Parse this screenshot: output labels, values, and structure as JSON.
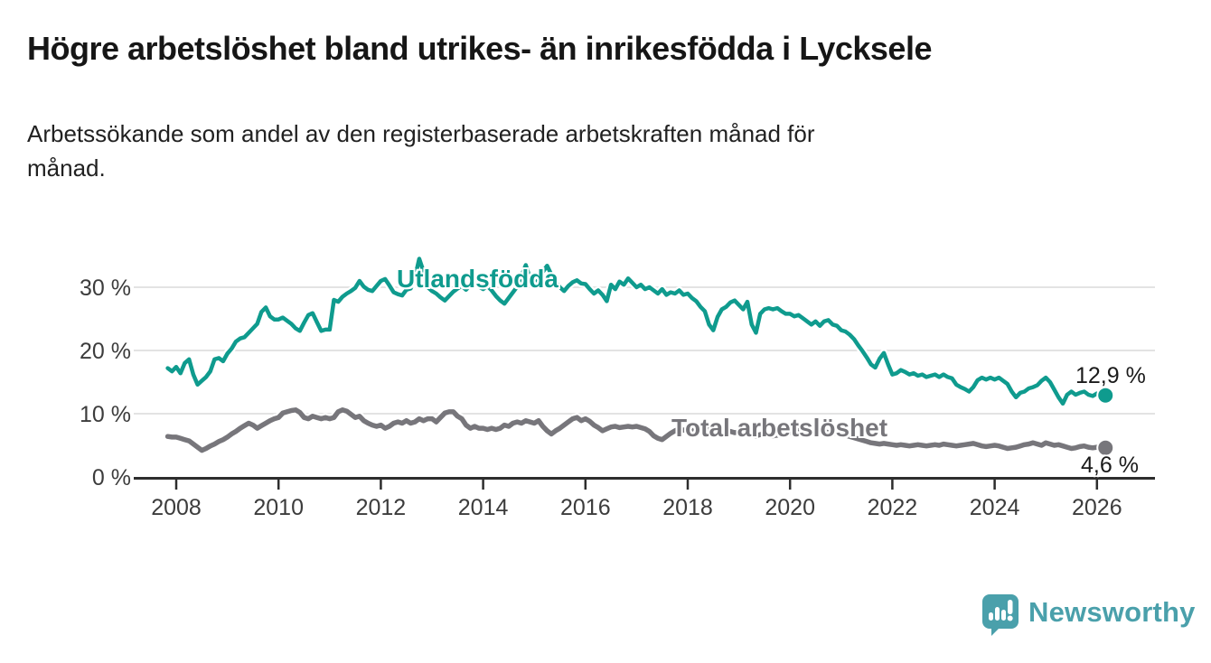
{
  "header": {
    "title": "Högre arbetslöshet bland utrikes- än inrikesfödda i Lycksele",
    "subtitle_line1": "Arbetssökande som andel av den registerbaserade arbetskraften månad för",
    "subtitle_line2": "månad."
  },
  "footer": {
    "brand": "Newsworthy",
    "brand_color": "#4aa0ab"
  },
  "colors": {
    "grid": "#e3e3e3",
    "axis": "#2d2d2d",
    "tick_text": "#3c3c3c",
    "data_label_text": "#1a1a1a",
    "background": "#ffffff"
  },
  "chart_data": {
    "type": "line",
    "unit": "percent",
    "title": "Högre arbetslöshet bland utrikes- än inrikesfödda i Lycksele",
    "subtitle": "Arbetssökande som andel av den registerbaserade arbetskraften månad för månad.",
    "x_monthly_start": "2007-11",
    "x_monthly_end": "2026-03",
    "ylim": [
      0,
      35
    ],
    "grid": "horizontal",
    "legend_position": "inline-labels",
    "y_ticks": [
      {
        "v": 0,
        "label": "0 %"
      },
      {
        "v": 10,
        "label": "10 %"
      },
      {
        "v": 20,
        "label": "20 %"
      },
      {
        "v": 30,
        "label": "30 %"
      }
    ],
    "x_ticks": [
      {
        "year": 2008,
        "label": "2008"
      },
      {
        "year": 2010,
        "label": "2010"
      },
      {
        "year": 2012,
        "label": "2012"
      },
      {
        "year": 2014,
        "label": "2014"
      },
      {
        "year": 2016,
        "label": "2016"
      },
      {
        "year": 2018,
        "label": "2018"
      },
      {
        "year": 2020,
        "label": "2020"
      },
      {
        "year": 2022,
        "label": "2022"
      },
      {
        "year": 2024,
        "label": "2024"
      },
      {
        "year": 2026,
        "label": "2026"
      }
    ],
    "series": [
      {
        "name": "Utlandsfödda",
        "color": "#0f9b8e",
        "end_label": "12,9 %",
        "end_value": 12.9,
        "values": [
          17.2,
          16.7,
          17.4,
          16.4,
          18.0,
          18.6,
          16.2,
          14.6,
          15.2,
          15.8,
          16.7,
          18.6,
          18.8,
          18.3,
          19.5,
          20.3,
          21.4,
          21.9,
          22.1,
          22.8,
          23.5,
          24.2,
          26.1,
          26.8,
          25.4,
          24.9,
          24.9,
          25.2,
          24.7,
          24.2,
          23.5,
          23.1,
          24.4,
          25.6,
          25.9,
          24.5,
          23.1,
          23.3,
          23.3,
          28.0,
          27.7,
          28.5,
          29.0,
          29.4,
          29.9,
          31.0,
          30.1,
          29.6,
          29.4,
          30.2,
          31.0,
          31.3,
          30.3,
          29.2,
          28.9,
          28.7,
          29.6,
          29.8,
          31.5,
          34.5,
          32.5,
          30.0,
          29.4,
          29.0,
          28.4,
          27.9,
          28.6,
          29.3,
          29.8,
          30.2,
          29.6,
          30.4,
          30.8,
          30.1,
          29.7,
          30.2,
          29.5,
          28.6,
          27.9,
          27.4,
          28.3,
          29.2,
          30.1,
          31.8,
          33.5,
          31.4,
          30.6,
          31.2,
          32.4,
          33.4,
          32.0,
          30.8,
          30.0,
          29.4,
          30.2,
          30.8,
          31.1,
          30.6,
          30.5,
          29.7,
          29.0,
          29.5,
          28.8,
          27.8,
          30.4,
          29.7,
          30.9,
          30.4,
          31.4,
          30.7,
          30.0,
          30.4,
          29.7,
          30.0,
          29.5,
          29.0,
          29.7,
          28.8,
          29.2,
          29.0,
          29.5,
          28.8,
          29.0,
          28.3,
          27.8,
          26.9,
          26.2,
          24.1,
          23.2,
          25.3,
          26.5,
          26.9,
          27.6,
          27.9,
          27.2,
          26.5,
          27.7,
          24.1,
          22.8,
          25.8,
          26.5,
          26.7,
          26.5,
          26.7,
          26.2,
          25.8,
          25.8,
          25.4,
          25.6,
          25.1,
          24.6,
          24.1,
          24.6,
          23.9,
          24.6,
          24.8,
          24.1,
          23.9,
          23.2,
          23.0,
          22.5,
          21.8,
          20.8,
          19.9,
          18.9,
          17.8,
          17.3,
          18.7,
          19.6,
          17.8,
          16.2,
          16.4,
          16.9,
          16.6,
          16.2,
          16.4,
          16.0,
          16.2,
          15.8,
          16.0,
          16.2,
          15.8,
          16.2,
          15.8,
          15.6,
          14.6,
          14.2,
          13.9,
          13.5,
          14.2,
          15.3,
          15.7,
          15.4,
          15.7,
          15.4,
          15.7,
          15.2,
          14.7,
          13.5,
          12.6,
          13.3,
          13.5,
          14.0,
          14.2,
          14.5,
          15.2,
          15.7,
          15.0,
          13.8,
          12.6,
          11.6,
          13.0,
          13.5,
          13.0,
          13.3,
          13.5,
          13.0,
          12.8,
          13.2,
          12.8,
          12.9
        ]
      },
      {
        "name": "Total arbetslöshet",
        "color": "#77767b",
        "end_label": "4,6 %",
        "end_value": 4.6,
        "values": [
          6.4,
          6.3,
          6.3,
          6.1,
          5.9,
          5.7,
          5.2,
          4.7,
          4.2,
          4.5,
          4.9,
          5.2,
          5.6,
          5.9,
          6.3,
          6.8,
          7.2,
          7.7,
          8.1,
          8.5,
          8.2,
          7.7,
          8.1,
          8.5,
          8.9,
          9.2,
          9.4,
          10.1,
          10.3,
          10.5,
          10.6,
          10.2,
          9.4,
          9.2,
          9.6,
          9.4,
          9.2,
          9.4,
          9.2,
          9.4,
          10.3,
          10.6,
          10.4,
          9.9,
          9.4,
          9.6,
          8.9,
          8.5,
          8.2,
          8.0,
          8.2,
          7.7,
          8.0,
          8.5,
          8.7,
          8.5,
          8.9,
          8.5,
          8.7,
          9.2,
          8.9,
          9.2,
          9.2,
          8.7,
          9.4,
          10.1,
          10.3,
          10.3,
          9.6,
          9.2,
          8.2,
          7.7,
          8.0,
          7.7,
          7.7,
          7.5,
          7.7,
          7.5,
          7.7,
          8.2,
          8.0,
          8.5,
          8.7,
          8.5,
          8.9,
          8.7,
          8.5,
          8.9,
          8.0,
          7.3,
          6.8,
          7.3,
          7.7,
          8.2,
          8.7,
          9.2,
          9.4,
          8.9,
          9.2,
          8.8,
          8.2,
          7.8,
          7.3,
          7.6,
          7.9,
          8.0,
          7.8,
          7.9,
          8.0,
          7.9,
          8.0,
          7.8,
          7.6,
          7.2,
          6.5,
          6.1,
          5.9,
          6.4,
          6.9,
          7.3,
          7.6,
          7.4,
          7.6,
          7.3,
          7.6,
          7.1,
          7.3,
          7.6,
          7.4,
          7.2,
          7.0,
          7.1,
          7.2,
          7.0,
          7.1,
          6.9,
          6.8,
          6.6,
          6.5,
          6.7,
          6.8,
          6.6,
          6.5,
          6.6,
          6.7,
          6.8,
          6.9,
          7.0,
          7.3,
          7.7,
          7.9,
          7.8,
          7.6,
          7.4,
          7.2,
          7.0,
          6.9,
          6.8,
          6.7,
          6.6,
          6.4,
          6.2,
          6.0,
          5.8,
          5.6,
          5.4,
          5.3,
          5.2,
          5.3,
          5.2,
          5.1,
          5.0,
          5.1,
          5.0,
          4.9,
          5.0,
          5.1,
          5.0,
          4.9,
          5.0,
          5.1,
          5.0,
          5.2,
          5.1,
          5.0,
          4.9,
          5.0,
          5.1,
          5.2,
          5.3,
          5.1,
          4.9,
          4.8,
          4.9,
          5.0,
          4.9,
          4.7,
          4.5,
          4.6,
          4.7,
          4.9,
          5.1,
          5.2,
          5.4,
          5.2,
          5.0,
          5.4,
          5.2,
          5.0,
          5.1,
          4.9,
          4.7,
          4.5,
          4.6,
          4.8,
          4.9,
          4.7,
          4.6,
          4.7,
          4.65,
          4.6
        ]
      }
    ]
  }
}
